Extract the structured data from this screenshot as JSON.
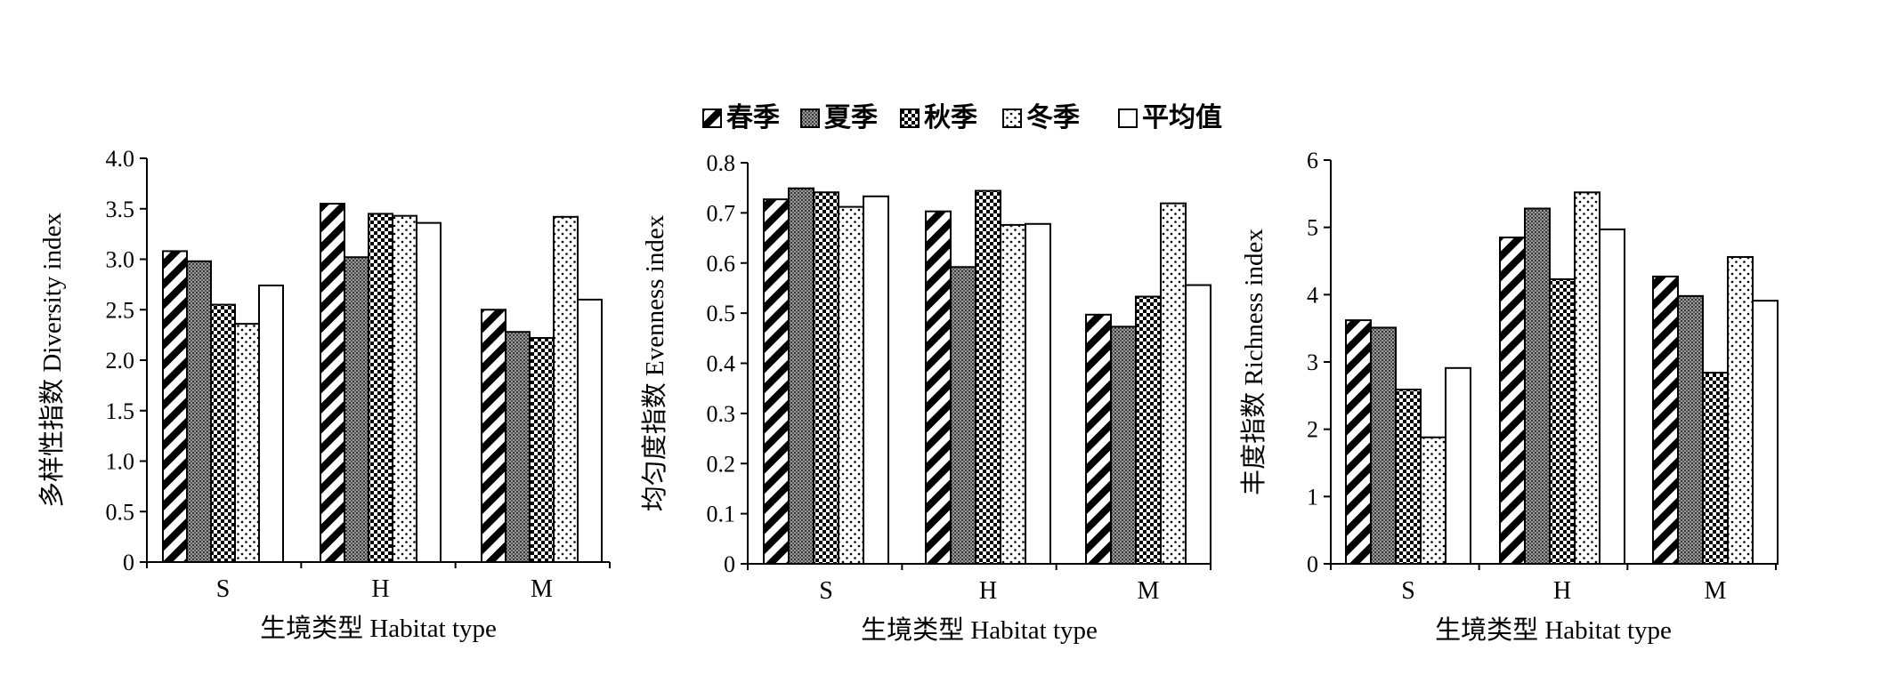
{
  "legend": {
    "items": [
      {
        "label": "春季",
        "pattern": "spring"
      },
      {
        "label": "夏季",
        "pattern": "summer"
      },
      {
        "label": "秋季",
        "pattern": "autumn"
      },
      {
        "label": "冬季",
        "pattern": "winter"
      },
      {
        "label": "平均值",
        "pattern": "mean"
      }
    ]
  },
  "chart_data": [
    {
      "type": "bar",
      "categories": [
        "S",
        "H",
        "M"
      ],
      "series": [
        {
          "name": "春季",
          "values": [
            3.08,
            3.55,
            2.5
          ]
        },
        {
          "name": "夏季",
          "values": [
            2.98,
            3.02,
            2.28
          ]
        },
        {
          "name": "秋季",
          "values": [
            2.55,
            3.45,
            2.22
          ]
        },
        {
          "name": "冬季",
          "values": [
            2.36,
            3.43,
            3.42
          ]
        },
        {
          "name": "平均值",
          "values": [
            2.74,
            3.36,
            2.6
          ]
        }
      ],
      "xlabel": "生境类型 Habitat type",
      "ylabel": "多样性指数 Diversity index",
      "ylim": [
        0,
        4
      ],
      "yticks": [
        "0",
        "0.5",
        "1.0",
        "1.5",
        "2.0",
        "2.5",
        "3.0",
        "3.5",
        "4.0"
      ],
      "grid": false,
      "legend": "top-center"
    },
    {
      "type": "bar",
      "categories": [
        "S",
        "H",
        "M"
      ],
      "series": [
        {
          "name": "春季",
          "values": [
            0.727,
            0.703,
            0.497
          ]
        },
        {
          "name": "夏季",
          "values": [
            0.749,
            0.592,
            0.473
          ]
        },
        {
          "name": "秋季",
          "values": [
            0.741,
            0.744,
            0.533
          ]
        },
        {
          "name": "冬季",
          "values": [
            0.712,
            0.676,
            0.719
          ]
        },
        {
          "name": "平均值",
          "values": [
            0.733,
            0.678,
            0.556
          ]
        }
      ],
      "xlabel": "生境类型 Habitat type",
      "ylabel": "均匀度指数 Evenness index",
      "ylim": [
        0,
        0.8
      ],
      "yticks": [
        "0",
        "0.1",
        "0.2",
        "0.3",
        "0.4",
        "0.5",
        "0.6",
        "0.7",
        "0.8"
      ],
      "grid": false,
      "legend": "top-center"
    },
    {
      "type": "bar",
      "categories": [
        "S",
        "H",
        "M"
      ],
      "series": [
        {
          "name": "春季",
          "values": [
            3.62,
            4.85,
            4.27
          ]
        },
        {
          "name": "夏季",
          "values": [
            3.51,
            5.28,
            3.98
          ]
        },
        {
          "name": "秋季",
          "values": [
            2.59,
            4.23,
            2.84
          ]
        },
        {
          "name": "冬季",
          "values": [
            1.88,
            5.52,
            4.56
          ]
        },
        {
          "name": "平均值",
          "values": [
            2.91,
            4.97,
            3.91
          ]
        }
      ],
      "xlabel": "生境类型 Habitat type",
      "ylabel": "丰度指数 Richness index",
      "ylim": [
        0,
        6
      ],
      "yticks": [
        "0",
        "1",
        "2",
        "3",
        "4",
        "5",
        "6"
      ],
      "grid": false,
      "legend": "top-center"
    }
  ]
}
